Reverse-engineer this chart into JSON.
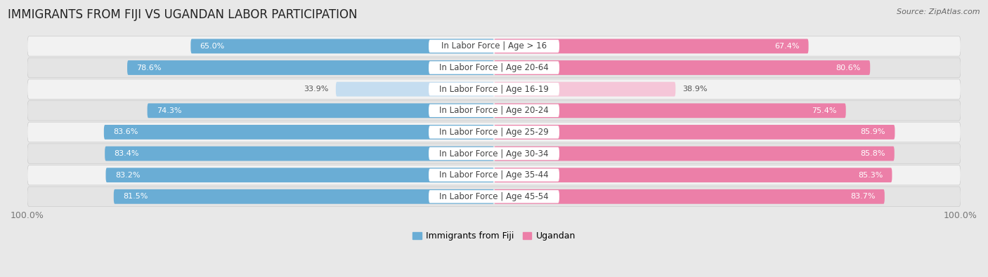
{
  "title": "IMMIGRANTS FROM FIJI VS UGANDAN LABOR PARTICIPATION",
  "source": "Source: ZipAtlas.com",
  "categories": [
    "In Labor Force | Age > 16",
    "In Labor Force | Age 20-64",
    "In Labor Force | Age 16-19",
    "In Labor Force | Age 20-24",
    "In Labor Force | Age 25-29",
    "In Labor Force | Age 30-34",
    "In Labor Force | Age 35-44",
    "In Labor Force | Age 45-54"
  ],
  "fiji_values": [
    65.0,
    78.6,
    33.9,
    74.3,
    83.6,
    83.4,
    83.2,
    81.5
  ],
  "ugandan_values": [
    67.4,
    80.6,
    38.9,
    75.4,
    85.9,
    85.8,
    85.3,
    83.7
  ],
  "fiji_color_full": "#6aadd5",
  "fiji_color_light": "#c5ddf0",
  "ugandan_color_full": "#ec7fa8",
  "ugandan_color_light": "#f5c6d8",
  "fiji_label": "Immigrants from Fiji",
  "ugandan_label": "Ugandan",
  "background_color": "#e8e8e8",
  "row_bg_light": "#f2f2f2",
  "row_bg_dark": "#e4e4e4",
  "title_fontsize": 12,
  "label_fontsize": 8.5,
  "value_fontsize": 8,
  "legend_fontsize": 9,
  "footer_fontsize": 9,
  "max_value": 100.0,
  "threshold_full_color": 50
}
